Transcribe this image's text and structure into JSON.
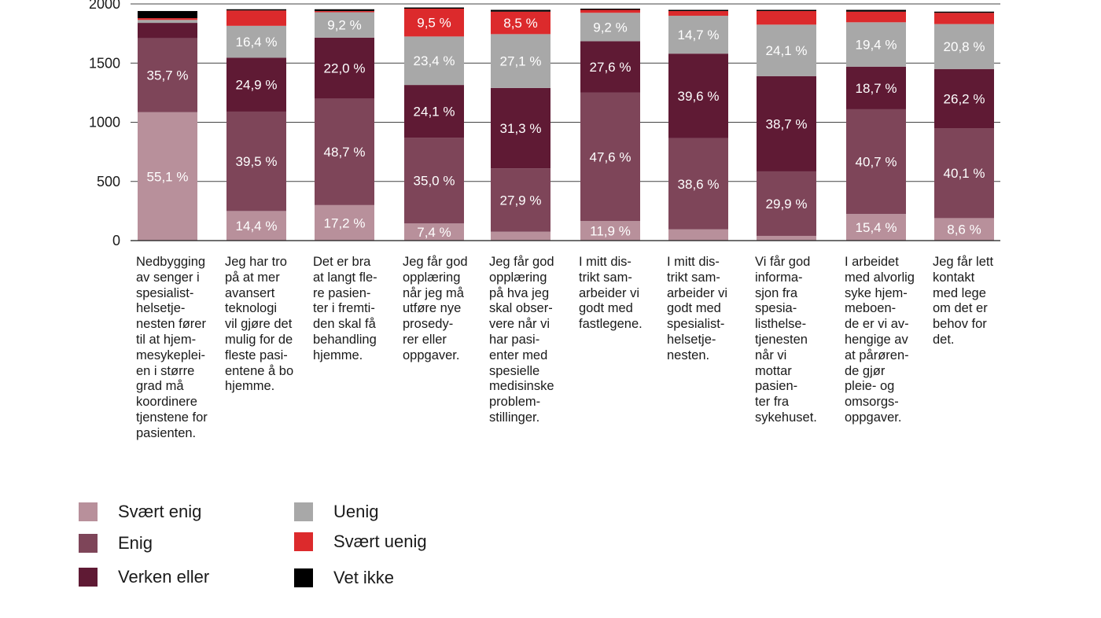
{
  "chart_data": {
    "type": "bar",
    "stacked": true,
    "ylim": [
      0,
      2000
    ],
    "yticks": [
      "0",
      "500",
      "1000",
      "1500",
      "2000"
    ],
    "grid": true,
    "legend_position": "bottom-left",
    "categories": [
      "Nedbygging\nav senger i\nspesialist-\nhelsetje-\nnesten fører\ntil at hjem-\nmesykeplei-\nen i større\ngrad må\nkoordinere\ntjenstene for\npasienten.",
      "Jeg har tro\npå at mer\navansert\nteknologi\nvil gjøre det\nmulig for de\nfleste pasi-\nentene å bo\nhjemme.",
      "Det er bra\nat langt fle-\nre pasien-\nter i fremti-\nden skal få\nbehandling\nhjemme.",
      "Jeg får god\nopplæring\nnår jeg må\nutføre nye\nprosedy-\nrer eller\noppgaver.",
      "Jeg får god\nopplæring\npå hva jeg\nskal obser-\nvere når vi\nhar pasi-\nenter med\nspesielle\nmedisinske\nproblem-\nstillinger.",
      "I mitt dis-\ntrikt sam-\narbeider vi\ngodt med\nfastlegene.",
      "I mitt dis-\ntrikt sam-\narbeider vi\ngodt med\nspesialist-\nhelsetje-\nnesten.",
      "Vi får god\ninforma-\nsjon fra\nspesia-\nlisthelse-\ntjenesten\nnår vi\nmottar\npasien-\nter fra\nsykehuset.",
      "I arbeidet\nmed alvorlig\nsyke hjem-\nmeboen-\nde er vi av-\nhengige av\nat pårøren-\nde gjør\npleie- og\nomsorgs-\noppgaver.",
      "Jeg får lett\nkontakt\nmed lege\nom det er\nbehov for\ndet."
    ],
    "series": [
      {
        "name": "Svært enig",
        "color": "#b8909b",
        "values": [
          1085,
          250,
          300,
          145,
          75,
          165,
          95,
          40,
          225,
          190
        ],
        "labels": [
          "55,1 %",
          "14,4 %",
          "17,2 %",
          "7,4 %",
          "",
          "11,9 %",
          "",
          "",
          "15,4 %",
          "8,6 %"
        ]
      },
      {
        "name": "Enig",
        "color": "#7e4559",
        "values": [
          625,
          840,
          900,
          725,
          535,
          1085,
          770,
          545,
          885,
          760
        ],
        "labels": [
          "35,7 %",
          "39,5 %",
          "48,7 %",
          "35,0 %",
          "27,9 %",
          "47,6 %",
          "38,6 %",
          "29,9 %",
          "40,7 %",
          "40,1 %"
        ]
      },
      {
        "name": "Verken eller",
        "color": "#5f1a34",
        "values": [
          130,
          455,
          515,
          445,
          680,
          435,
          715,
          805,
          360,
          500
        ],
        "labels": [
          "",
          "24,9 %",
          "22,0 %",
          "24,1 %",
          "31,3 %",
          "27,6 %",
          "39,6 %",
          "38,7 %",
          "18,7 %",
          "26,2 %"
        ]
      },
      {
        "name": "Uenig",
        "color": "#a8a8a8",
        "values": [
          25,
          270,
          215,
          410,
          455,
          240,
          320,
          435,
          375,
          380
        ],
        "labels": [
          "",
          "16,4 %",
          "9,2 %",
          "23,4 %",
          "27,1 %",
          "9,2 %",
          "14,7 %",
          "24,1 %",
          "19,4 %",
          "20,8 %"
        ]
      },
      {
        "name": "Svært uenig",
        "color": "#dc2a2c",
        "values": [
          15,
          130,
          10,
          235,
          190,
          25,
          40,
          115,
          90,
          95
        ],
        "labels": [
          "",
          "",
          "",
          "9,5 %",
          "8,5 %",
          "",
          "",
          "",
          "",
          ""
        ]
      },
      {
        "name": "Vet ikke",
        "color": "#000000",
        "values": [
          60,
          10,
          15,
          10,
          15,
          10,
          10,
          10,
          15,
          10
        ],
        "labels": [
          "",
          "",
          "",
          "",
          "",
          "",
          "",
          "",
          "",
          ""
        ]
      }
    ]
  }
}
